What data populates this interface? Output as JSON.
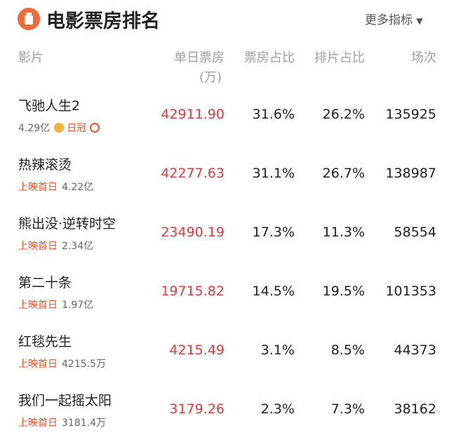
{
  "header": {
    "title": "电影票房排名",
    "more": "更多指标"
  },
  "columns": {
    "film": "影片",
    "daily": "单日票房",
    "daily_unit": "(万)",
    "share": "票房占比",
    "schedule": "排片占比",
    "shows": "场次"
  },
  "rows": [
    {
      "name": "飞驰人生2",
      "total": "4.29亿",
      "badge": "日冠",
      "daily": "42911.90",
      "share": "31.6%",
      "schedule": "26.2%",
      "shows": "135925"
    },
    {
      "name": "热辣滚烫",
      "tag": "上映首日",
      "total": "4.22亿",
      "daily": "42277.63",
      "share": "31.1%",
      "schedule": "26.7%",
      "shows": "138987"
    },
    {
      "name": "熊出没·逆转时空",
      "tag": "上映首日",
      "total": "2.34亿",
      "daily": "23490.19",
      "share": "17.3%",
      "schedule": "11.3%",
      "shows": "58554"
    },
    {
      "name": "第二十条",
      "tag": "上映首日",
      "total": "1.97亿",
      "daily": "19715.82",
      "share": "14.5%",
      "schedule": "19.5%",
      "shows": "101353"
    },
    {
      "name": "红毯先生",
      "tag": "上映首日",
      "total": "4215.5万",
      "daily": "4215.49",
      "share": "3.1%",
      "schedule": "8.5%",
      "shows": "44373"
    },
    {
      "name": "我们一起摇太阳",
      "tag": "上映首日",
      "total": "3181.4万",
      "daily": "3179.26",
      "share": "2.3%",
      "schedule": "7.3%",
      "shows": "38162"
    }
  ]
}
